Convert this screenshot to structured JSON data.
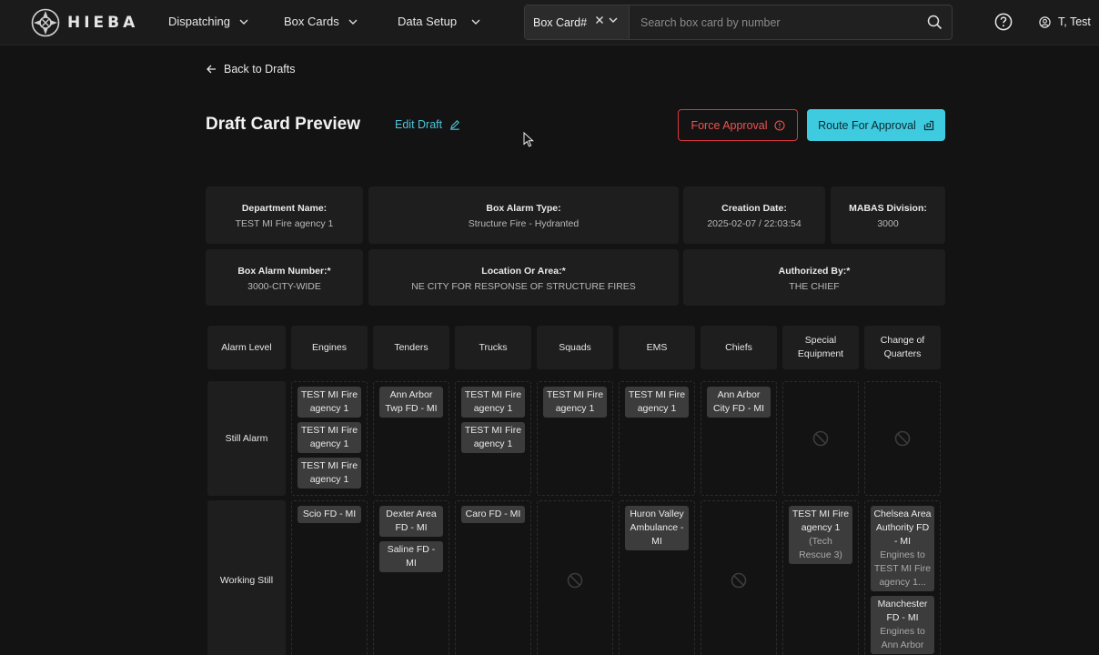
{
  "brand": {
    "name": "HIEBA"
  },
  "nav": {
    "items": [
      {
        "label": "Dispatching"
      },
      {
        "label": "Box Cards"
      },
      {
        "label": "Data Setup"
      }
    ]
  },
  "search": {
    "type_label": "Box Card#",
    "placeholder": "Search box card by number"
  },
  "user": {
    "name": "T, Test"
  },
  "page": {
    "back_label": "Back to Drafts",
    "title": "Draft Card Preview",
    "edit_label": "Edit Draft",
    "force_label": "Force Approval",
    "route_label": "Route For Approval"
  },
  "info": {
    "department": {
      "label": "Department Name:",
      "value": "TEST MI Fire agency 1"
    },
    "box_alarm_type": {
      "label": "Box Alarm Type:",
      "value": "Structure Fire - Hydranted"
    },
    "creation_date": {
      "label": "Creation Date:",
      "value": "2025-02-07 / 22:03:54"
    },
    "mabas_division": {
      "label": "MABAS Division:",
      "value": "3000"
    },
    "box_alarm_number": {
      "label": "Box Alarm Number:*",
      "value": "3000-CITY-WIDE"
    },
    "location": {
      "label": "Location Or Area:*",
      "value": "NE CITY FOR RESPONSE OF STRUCTURE FIRES"
    },
    "authorized_by": {
      "label": "Authorized By:*",
      "value": "THE CHIEF"
    }
  },
  "grid": {
    "headers": [
      "Alarm Level",
      "Engines",
      "Tenders",
      "Trucks",
      "Squads",
      "EMS",
      "Chiefs",
      "Special Equipment",
      "Change of Quarters"
    ],
    "rows": [
      {
        "level": "Still Alarm",
        "cells": [
          [
            {
              "name": "TEST MI Fire agency 1"
            },
            {
              "name": "TEST MI Fire agency 1"
            },
            {
              "name": "TEST MI Fire agency 1"
            }
          ],
          [
            {
              "name": "Ann Arbor Twp FD - MI"
            }
          ],
          [
            {
              "name": "TEST MI Fire agency 1"
            },
            {
              "name": "TEST MI Fire agency 1"
            }
          ],
          [
            {
              "name": "TEST MI Fire agency 1"
            }
          ],
          [
            {
              "name": "TEST MI Fire agency 1"
            }
          ],
          [
            {
              "name": "Ann Arbor City FD - MI"
            }
          ],
          [],
          []
        ]
      },
      {
        "level": "Working Still",
        "cells": [
          [
            {
              "name": "Scio FD - MI"
            }
          ],
          [
            {
              "name": "Dexter Area FD - MI"
            },
            {
              "name": "Saline FD - MI"
            }
          ],
          [
            {
              "name": "Caro FD - MI"
            }
          ],
          [],
          [
            {
              "name": "Huron Valley Ambulance - MI"
            }
          ],
          [],
          [
            {
              "name": "TEST MI Fire agency 1",
              "note": "(Tech Rescue 3)"
            }
          ],
          [
            {
              "name": "Chelsea Area Authority FD - MI",
              "note": "Engines to TEST MI Fire agency 1..."
            },
            {
              "name": "Manchester FD - MI",
              "note": "Engines to Ann Arbor"
            }
          ]
        ]
      }
    ]
  },
  "icons": {
    "logo": "maltese-cross-logo-icon",
    "nav_chevron": "chevron-down-icon",
    "clear": "close-icon",
    "search": "search-icon",
    "help": "help-circle-icon",
    "user": "user-circle-icon",
    "back": "arrow-left-icon",
    "edit": "pencil-icon",
    "force": "alert-circle-icon",
    "route": "share-icon",
    "empty": "prohibited-icon"
  },
  "colors": {
    "accent": "#3ecbe0",
    "danger": "#ef5350",
    "background": "#131313",
    "card": "#1e1e1e",
    "chip": "#3c3c3c"
  }
}
